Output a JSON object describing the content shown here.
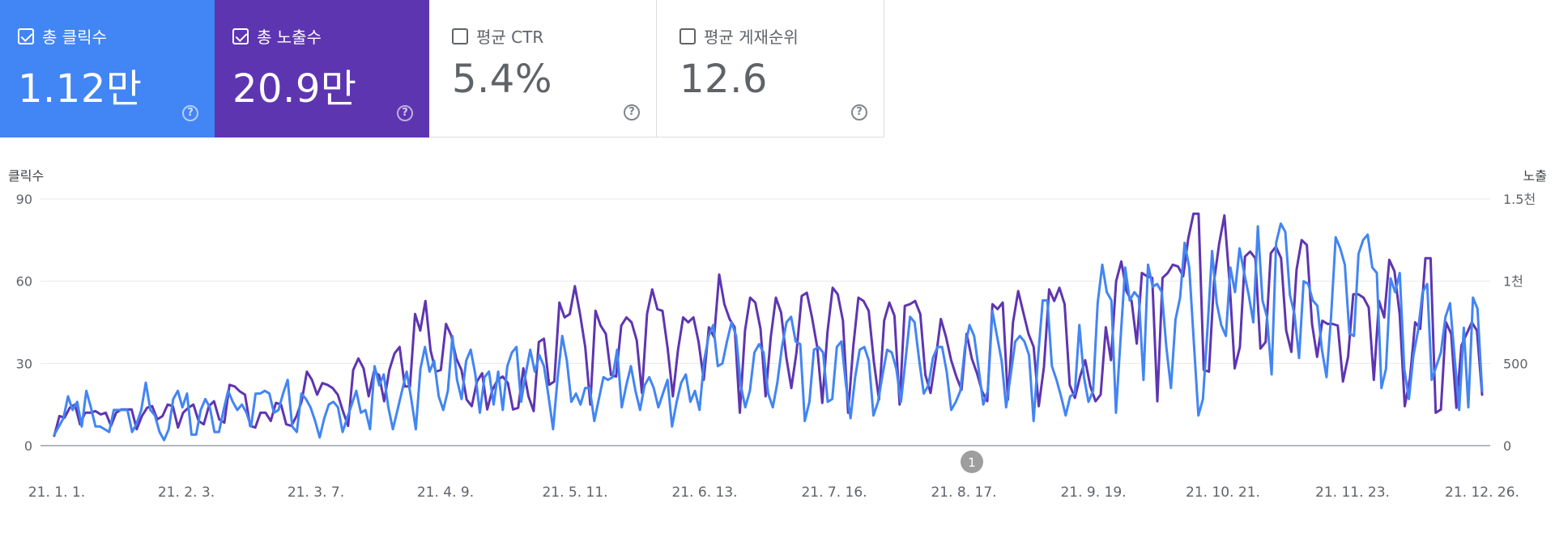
{
  "cards": [
    {
      "label": "총 클릭수",
      "value": "1.12만",
      "checked": true
    },
    {
      "label": "총 노출수",
      "value": "20.9만",
      "checked": true
    },
    {
      "label": "평균 CTR",
      "value": "5.4%",
      "checked": false
    },
    {
      "label": "평균 게재순위",
      "value": "12.6",
      "checked": false
    }
  ],
  "chart_data": {
    "type": "line",
    "left_axis": {
      "title": "클릭수",
      "ticks": [
        "0",
        "30",
        "60",
        "90"
      ],
      "range": [
        0,
        90
      ]
    },
    "right_axis": {
      "title": "노출",
      "ticks": [
        "0",
        "500",
        "1천",
        "1.5천"
      ],
      "range": [
        0,
        1500
      ]
    },
    "x_tick_labels": [
      "21. 1. 1.",
      "21. 2. 3.",
      "21. 3. 7.",
      "21. 4. 9.",
      "21. 5. 11.",
      "21. 6. 13.",
      "21. 7. 16.",
      "21. 8. 17.",
      "21. 9. 19.",
      "21. 10. 21.",
      "21. 11. 23.",
      "21. 12. 26."
    ],
    "annotation": "1",
    "grid": true,
    "colors": {
      "clicks": "#4285f4",
      "impressions": "#5e35b1"
    },
    "series": [
      {
        "key": "impressions",
        "axis": "right",
        "values": [
          60,
          180,
          170,
          230,
          250,
          130,
          200,
          200,
          210,
          190,
          200,
          120,
          200,
          220,
          220,
          220,
          100,
          180,
          230,
          240,
          160,
          180,
          250,
          240,
          110,
          200,
          230,
          250,
          150,
          130,
          240,
          270,
          160,
          140,
          370,
          360,
          330,
          310,
          120,
          110,
          200,
          200,
          150,
          260,
          250,
          130,
          120,
          180,
          270,
          450,
          400,
          310,
          380,
          370,
          350,
          310,
          210,
          120,
          460,
          530,
          470,
          300,
          450,
          430,
          270,
          460,
          560,
          600,
          360,
          360,
          800,
          700,
          880,
          580,
          450,
          460,
          740,
          670,
          530,
          460,
          280,
          240,
          390,
          440,
          220,
          340,
          400,
          420,
          380,
          220,
          230,
          470,
          300,
          210,
          630,
          650,
          370,
          390,
          870,
          780,
          800,
          970,
          800,
          600,
          250,
          820,
          730,
          680,
          430,
          420,
          730,
          780,
          750,
          640,
          320,
          800,
          950,
          830,
          820,
          590,
          300,
          580,
          780,
          750,
          780,
          630,
          400,
          720,
          660,
          1040,
          860,
          770,
          720,
          200,
          700,
          900,
          870,
          710,
          300,
          660,
          900,
          810,
          540,
          350,
          570,
          910,
          930,
          780,
          600,
          260,
          690,
          960,
          920,
          760,
          200,
          600,
          900,
          880,
          820,
          510,
          280,
          760,
          870,
          790,
          250,
          850,
          860,
          880,
          800,
          430,
          320,
          530,
          770,
          660,
          520,
          420,
          340,
          680,
          530,
          440,
          330,
          270,
          860,
          830,
          870,
          280,
          750,
          940,
          810,
          680,
          600,
          240,
          480,
          950,
          880,
          960,
          860,
          370,
          290,
          420,
          520,
          360,
          270,
          310,
          720,
          520,
          1000,
          1120,
          940,
          880,
          620,
          1050,
          1030,
          1020,
          270,
          1020,
          1050,
          1100,
          1090,
          1030,
          1260,
          1410,
          1410,
          460,
          450,
          1000,
          1230,
          1400,
          1000,
          470,
          600,
          1150,
          1180,
          1140,
          590,
          630,
          1170,
          1210,
          1140,
          700,
          570,
          1070,
          1250,
          1220,
          740,
          540,
          760,
          740,
          740,
          730,
          390,
          540,
          920,
          920,
          900,
          840,
          400,
          880,
          780,
          1130,
          1060,
          800,
          240,
          410,
          750,
          710,
          1140,
          1140,
          200,
          220,
          750,
          680,
          230,
          610,
          680,
          750,
          700,
          310
        ]
      },
      {
        "key": "clicks",
        "axis": "left",
        "values": [
          4,
          7,
          10,
          18,
          13,
          16,
          7,
          20,
          14,
          7,
          7,
          6,
          5,
          13,
          13,
          13,
          13,
          5,
          8,
          13,
          23,
          13,
          11,
          5,
          2,
          6,
          17,
          20,
          14,
          19,
          4,
          4,
          13,
          17,
          14,
          5,
          5,
          13,
          20,
          16,
          13,
          15,
          12,
          7,
          19,
          19,
          20,
          19,
          12,
          13,
          19,
          24,
          7,
          5,
          19,
          17,
          14,
          9,
          3,
          10,
          15,
          16,
          14,
          5,
          10,
          15,
          20,
          12,
          13,
          6,
          29,
          22,
          26,
          14,
          6,
          13,
          20,
          27,
          17,
          6,
          28,
          36,
          27,
          31,
          18,
          13,
          20,
          40,
          24,
          17,
          31,
          35,
          26,
          12,
          25,
          27,
          15,
          27,
          13,
          29,
          34,
          36,
          16,
          26,
          35,
          27,
          33,
          29,
          18,
          6,
          25,
          40,
          31,
          16,
          19,
          15,
          21,
          21,
          9,
          17,
          25,
          24,
          25,
          35,
          14,
          22,
          29,
          20,
          13,
          22,
          25,
          21,
          14,
          19,
          24,
          7,
          16,
          23,
          26,
          16,
          20,
          13,
          31,
          40,
          44,
          29,
          30,
          38,
          45,
          40,
          22,
          14,
          20,
          34,
          37,
          34,
          19,
          14,
          23,
          36,
          45,
          47,
          38,
          37,
          9,
          16,
          35,
          36,
          34,
          16,
          17,
          36,
          38,
          22,
          10,
          25,
          35,
          36,
          31,
          11,
          16,
          26,
          35,
          34,
          28,
          16,
          31,
          47,
          45,
          31,
          19,
          22,
          32,
          36,
          36,
          27,
          13,
          16,
          20,
          36,
          44,
          40,
          28,
          15,
          20,
          49,
          40,
          31,
          14,
          26,
          38,
          40,
          38,
          33,
          9,
          33,
          53,
          53,
          29,
          24,
          18,
          11,
          18,
          19,
          44,
          25,
          16,
          20,
          52,
          66,
          56,
          53,
          12,
          39,
          65,
          53,
          56,
          54,
          24,
          66,
          58,
          59,
          56,
          36,
          21,
          46,
          54,
          74,
          65,
          38,
          11,
          17,
          43,
          71,
          52,
          44,
          40,
          65,
          56,
          72,
          63,
          55,
          45,
          80,
          53,
          47,
          26,
          74,
          81,
          78,
          55,
          48,
          32,
          60,
          59,
          53,
          51,
          35,
          25,
          47,
          76,
          72,
          66,
          41,
          40,
          70,
          75,
          77,
          65,
          63,
          21,
          28,
          61,
          56,
          63,
          28,
          17,
          33,
          42,
          56,
          59,
          24,
          29,
          34,
          47,
          52,
          32,
          13,
          43,
          14,
          54,
          50,
          20
        ]
      }
    ]
  }
}
